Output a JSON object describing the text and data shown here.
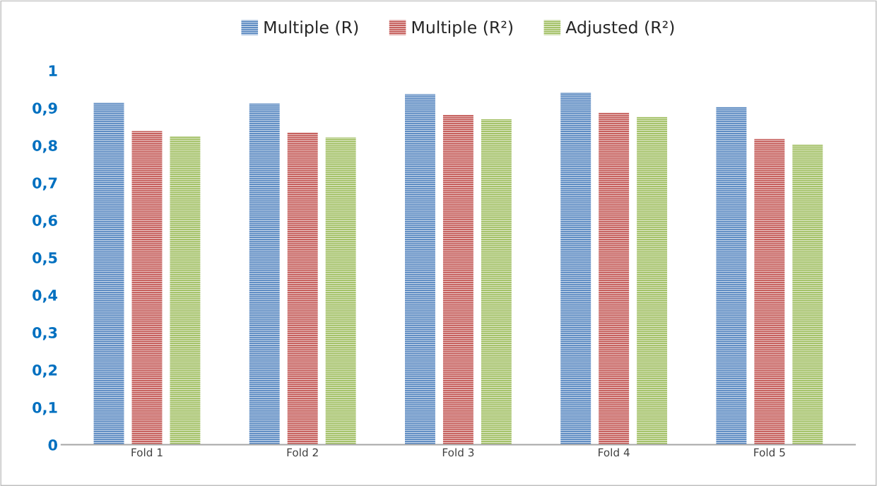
{
  "chart_data": {
    "type": "bar",
    "categories": [
      "Fold 1",
      "Fold 2",
      "Fold 3",
      "Fold 4",
      "Fold 5"
    ],
    "series": [
      {
        "name": "Multiple (R)",
        "color": "#4f81bd",
        "values": [
          0.914,
          0.912,
          0.937,
          0.941,
          0.903
        ]
      },
      {
        "name": "Multiple (R²)",
        "color": "#c0504d",
        "values": [
          0.838,
          0.834,
          0.882,
          0.887,
          0.817
        ]
      },
      {
        "name": "Adjusted (R²)",
        "color": "#9bbb59",
        "values": [
          0.824,
          0.821,
          0.87,
          0.876,
          0.802
        ]
      }
    ],
    "ylim": [
      0,
      1
    ],
    "yticks": [
      0,
      {
        "value": 0.1,
        "label": "0,1"
      },
      {
        "value": 0.2,
        "label": "0,2"
      },
      {
        "value": 0.3,
        "label": "0,3"
      },
      {
        "value": 0.4,
        "label": "0,4"
      },
      {
        "value": 0.5,
        "label": "0,5"
      },
      {
        "value": 0.6,
        "label": "0,6"
      },
      {
        "value": 0.7,
        "label": "0,7"
      },
      {
        "value": 0.8,
        "label": "0,8"
      },
      {
        "value": 0.9,
        "label": "0,9"
      },
      1
    ],
    "grid": false,
    "legend": "top"
  }
}
